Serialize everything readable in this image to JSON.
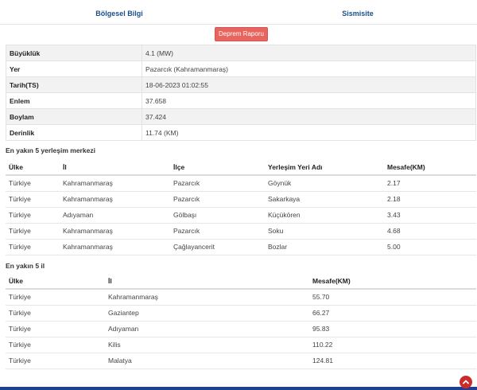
{
  "tabs": [
    "Bölgesel Bilgi",
    "Sismisite"
  ],
  "report_button": "Deprem Raporu",
  "info": [
    {
      "key": "Büyüklük",
      "value": "4.1 (MW)"
    },
    {
      "key": "Yer",
      "value": "Pazarcık (Kahramanmaraş)"
    },
    {
      "key": "Tarih(TS)",
      "value": "18-06-2023 01:02:55"
    },
    {
      "key": "Enlem",
      "value": "37.658"
    },
    {
      "key": "Boylam",
      "value": "37.424"
    },
    {
      "key": "Derinlik",
      "value": "11.74 (KM)"
    }
  ],
  "settlements": {
    "title": "En yakın 5 yerleşim merkezi",
    "headers": [
      "Ülke",
      "İl",
      "İlçe",
      "Yerleşim Yeri Adı",
      "Mesafe(KM)"
    ],
    "rows": [
      [
        "Türkiye",
        "Kahramanmaraş",
        "Pazarcık",
        "Göynük",
        "2.17"
      ],
      [
        "Türkiye",
        "Kahramanmaraş",
        "Pazarcık",
        "Sakarkaya",
        "2.18"
      ],
      [
        "Türkiye",
        "Adıyaman",
        "Gölbaşı",
        "Küçükören",
        "3.43"
      ],
      [
        "Türkiye",
        "Kahramanmaraş",
        "Pazarcık",
        "Soku",
        "4.68"
      ],
      [
        "Türkiye",
        "Kahramanmaraş",
        "Çağlayancerit",
        "Bozlar",
        "5.00"
      ]
    ]
  },
  "provinces": {
    "title": "En yakın 5 il",
    "headers": [
      "Ülke",
      "İl",
      "Mesafe(KM)"
    ],
    "rows": [
      [
        "Türkiye",
        "Kahramanmaraş",
        "55.70"
      ],
      [
        "Türkiye",
        "Gaziantep",
        "66.27"
      ],
      [
        "Türkiye",
        "Adıyaman",
        "95.83"
      ],
      [
        "Türkiye",
        "Kilis",
        "110.22"
      ],
      [
        "Türkiye",
        "Malatya",
        "124.81"
      ]
    ]
  },
  "scroll_top_icon": "chevron-up-icon"
}
